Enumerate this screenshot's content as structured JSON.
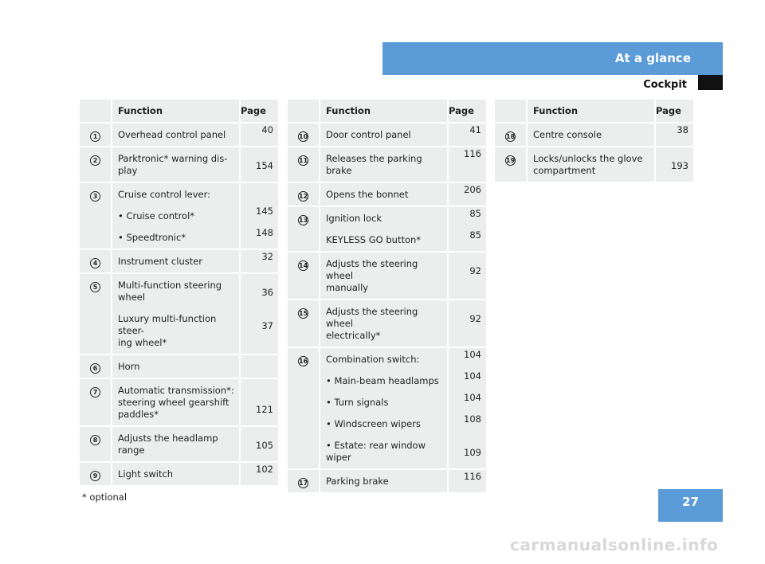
{
  "header": {
    "section": "At a glance",
    "subsection": "Cockpit"
  },
  "table_headers": {
    "function": "Function",
    "page": "Page"
  },
  "tables": [
    {
      "rows": [
        {
          "num": "1",
          "lines": [
            "Overhead control panel"
          ],
          "pages": [
            "40"
          ]
        },
        {
          "num": "2",
          "lines": [
            "Parktronic* warning dis-",
            "play"
          ],
          "pages": [
            "154"
          ]
        },
        {
          "num": "3",
          "lines": [
            "Cruise control lever:"
          ],
          "subs": [
            {
              "text": "• Cruise control*",
              "page": "145"
            },
            {
              "text": "• Speedtronic*",
              "page": "148"
            }
          ]
        },
        {
          "num": "4",
          "lines": [
            "Instrument cluster"
          ],
          "pages": [
            "32"
          ]
        },
        {
          "num": "5",
          "lines": [
            "Multi-function steering",
            "wheel"
          ],
          "pages": [
            "36"
          ],
          "subs": [
            {
              "text": "Luxury multi-function steer-",
              "text2": "ing wheel*",
              "page": "37"
            }
          ]
        },
        {
          "num": "6",
          "lines": [
            "Horn"
          ],
          "pages": [
            ""
          ]
        },
        {
          "num": "7",
          "lines": [
            "Automatic transmission*:",
            "steering wheel gearshift",
            "paddles*"
          ],
          "pages": [
            "121"
          ]
        },
        {
          "num": "8",
          "lines": [
            "Adjusts the headlamp",
            "range"
          ],
          "pages": [
            "105"
          ]
        },
        {
          "num": "9",
          "lines": [
            "Light switch"
          ],
          "pages": [
            "102"
          ]
        }
      ]
    },
    {
      "rows": [
        {
          "num": "10",
          "lines": [
            "Door control panel"
          ],
          "pages": [
            "41"
          ]
        },
        {
          "num": "11",
          "lines": [
            "Releases the parking brake"
          ],
          "pages": [
            "116"
          ]
        },
        {
          "num": "12",
          "lines": [
            "Opens the bonnet"
          ],
          "pages": [
            "206"
          ]
        },
        {
          "num": "13",
          "lines": [
            "Ignition lock"
          ],
          "pages": [
            "85"
          ],
          "subs": [
            {
              "text": "KEYLESS GO button*",
              "page": "85"
            }
          ]
        },
        {
          "num": "14",
          "lines": [
            "Adjusts the steering wheel",
            "manually"
          ],
          "pages": [
            "92"
          ]
        },
        {
          "num": "15",
          "lines": [
            "Adjusts the steering wheel",
            "electrically*"
          ],
          "pages": [
            "92"
          ]
        },
        {
          "num": "16",
          "lines": [
            "Combination switch:"
          ],
          "pages": [
            "104"
          ],
          "subs": [
            {
              "text": "• Main-beam headlamps",
              "page": "104"
            },
            {
              "text": "• Turn signals",
              "page": "104"
            },
            {
              "text": "• Windscreen wipers",
              "page": "108"
            },
            {
              "text": "• Estate: rear window",
              "text2": "wiper",
              "page": "109"
            }
          ]
        },
        {
          "num": "17",
          "lines": [
            "Parking brake"
          ],
          "pages": [
            "116"
          ]
        }
      ]
    },
    {
      "rows": [
        {
          "num": "18",
          "lines": [
            "Centre console"
          ],
          "pages": [
            "38"
          ]
        },
        {
          "num": "19",
          "lines": [
            "Locks/unlocks the glove",
            "compartment"
          ],
          "pages": [
            "193"
          ]
        }
      ]
    }
  ],
  "footnote": "* optional",
  "page_number": "27",
  "watermark": "carmanualsonline.info",
  "colors": {
    "accent": "#5b9bd8",
    "row_bg": "#eceeee"
  }
}
